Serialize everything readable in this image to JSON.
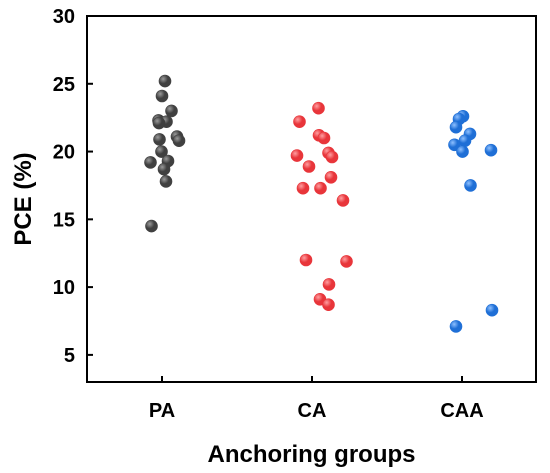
{
  "chart_data": {
    "type": "scatter",
    "xlabel": "Anchoring groups",
    "ylabel": "PCE (%)",
    "ylim": [
      3,
      30
    ],
    "yticks": [
      5,
      10,
      15,
      20,
      25,
      30
    ],
    "categories": [
      "PA",
      "CA",
      "CAA"
    ],
    "grid": false,
    "series": [
      {
        "color": "#404040",
        "highlight": "#9a9a9a",
        "points": [
          {
            "x": "PA",
            "y": 25.2,
            "jitter": 0.06
          },
          {
            "x": "PA",
            "y": 24.1,
            "jitter": 0.0
          },
          {
            "x": "PA",
            "y": 23.0,
            "jitter": 0.19
          },
          {
            "x": "PA",
            "y": 22.3,
            "jitter": -0.07
          },
          {
            "x": "PA",
            "y": 22.2,
            "jitter": 0.09
          },
          {
            "x": "PA",
            "y": 22.1,
            "jitter": -0.06
          },
          {
            "x": "PA",
            "y": 21.1,
            "jitter": 0.3
          },
          {
            "x": "PA",
            "y": 20.9,
            "jitter": -0.05
          },
          {
            "x": "PA",
            "y": 20.8,
            "jitter": 0.34
          },
          {
            "x": "PA",
            "y": 20.0,
            "jitter": -0.01
          },
          {
            "x": "PA",
            "y": 19.3,
            "jitter": 0.12
          },
          {
            "x": "PA",
            "y": 19.2,
            "jitter": -0.23
          },
          {
            "x": "PA",
            "y": 18.7,
            "jitter": 0.04
          },
          {
            "x": "PA",
            "y": 17.8,
            "jitter": 0.08
          },
          {
            "x": "PA",
            "y": 14.5,
            "jitter": -0.21
          }
        ]
      },
      {
        "color": "#e8353a",
        "highlight": "#ff9ea0",
        "points": [
          {
            "x": "CA",
            "y": 23.2,
            "jitter": 0.13
          },
          {
            "x": "CA",
            "y": 22.2,
            "jitter": -0.25
          },
          {
            "x": "CA",
            "y": 21.2,
            "jitter": 0.14
          },
          {
            "x": "CA",
            "y": 21.0,
            "jitter": 0.24
          },
          {
            "x": "CA",
            "y": 19.9,
            "jitter": 0.33
          },
          {
            "x": "CA",
            "y": 19.7,
            "jitter": -0.3
          },
          {
            "x": "CA",
            "y": 19.6,
            "jitter": 0.4
          },
          {
            "x": "CA",
            "y": 18.9,
            "jitter": -0.06
          },
          {
            "x": "CA",
            "y": 18.1,
            "jitter": 0.38
          },
          {
            "x": "CA",
            "y": 17.3,
            "jitter": -0.18
          },
          {
            "x": "CA",
            "y": 17.3,
            "jitter": 0.17
          },
          {
            "x": "CA",
            "y": 16.4,
            "jitter": 0.62
          },
          {
            "x": "CA",
            "y": 12.0,
            "jitter": -0.12
          },
          {
            "x": "CA",
            "y": 11.9,
            "jitter": 0.69
          },
          {
            "x": "CA",
            "y": 10.2,
            "jitter": 0.34
          },
          {
            "x": "CA",
            "y": 9.1,
            "jitter": 0.16
          },
          {
            "x": "CA",
            "y": 8.7,
            "jitter": 0.33
          }
        ]
      },
      {
        "color": "#1f6fd6",
        "highlight": "#8ec0ff",
        "points": [
          {
            "x": "CAA",
            "y": 22.6,
            "jitter": 0.02
          },
          {
            "x": "CAA",
            "y": 22.4,
            "jitter": -0.06
          },
          {
            "x": "CAA",
            "y": 21.8,
            "jitter": -0.12
          },
          {
            "x": "CAA",
            "y": 21.3,
            "jitter": 0.16
          },
          {
            "x": "CAA",
            "y": 20.8,
            "jitter": 0.06
          },
          {
            "x": "CAA",
            "y": 20.5,
            "jitter": -0.15
          },
          {
            "x": "CAA",
            "y": 20.1,
            "jitter": 0.58
          },
          {
            "x": "CAA",
            "y": 20.0,
            "jitter": 0.01
          },
          {
            "x": "CAA",
            "y": 17.5,
            "jitter": 0.17
          },
          {
            "x": "CAA",
            "y": 8.3,
            "jitter": 0.6
          },
          {
            "x": "CAA",
            "y": 7.1,
            "jitter": -0.12
          }
        ]
      }
    ]
  }
}
